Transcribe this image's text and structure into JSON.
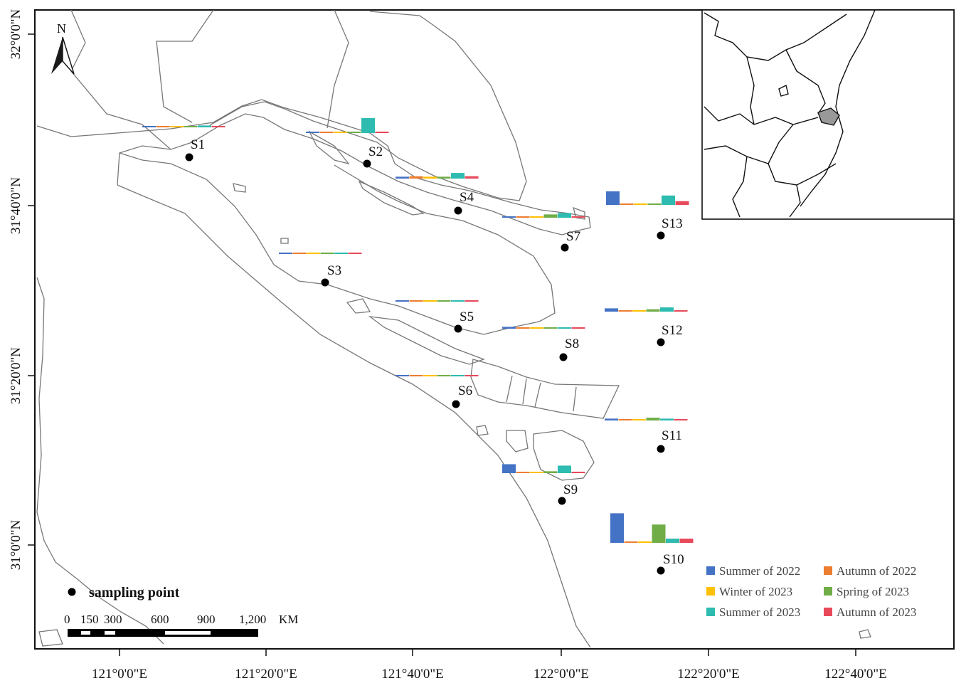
{
  "colors": {
    "summer_2022": "#4472C4",
    "autumn_2022": "#ED7D31",
    "winter_2023": "#FFC000",
    "spring_2023": "#70AD47",
    "summer_2023": "#2EBBB0",
    "autumn_2023": "#E8495A",
    "coast": "#777777",
    "frame": "#111111"
  },
  "north_arrow": {
    "label": "N"
  },
  "axes": {
    "x_ticks": [
      "121°0'0\"E",
      "121°20'0\"E",
      "121°40'0\"E",
      "122°0'0\"E",
      "122°20'0\"E",
      "122°40'0\"E"
    ],
    "y_ticks": [
      "32°0'0\"N",
      "31°40'0\"N",
      "31°20'0\"N",
      "31°0'0\"N"
    ]
  },
  "legend": {
    "sampling_point": "sampling point",
    "series": [
      {
        "key": "summer_2022",
        "label": "Summer of 2022"
      },
      {
        "key": "autumn_2022",
        "label": "Autumn of 2022"
      },
      {
        "key": "winter_2023",
        "label": "Winter of 2023"
      },
      {
        "key": "spring_2023",
        "label": "Spring of 2023"
      },
      {
        "key": "summer_2023",
        "label": "Summer of 2023"
      },
      {
        "key": "autumn_2023",
        "label": "Autumn of 2023"
      }
    ]
  },
  "scale_bar": {
    "labels": [
      "0",
      "150",
      "300",
      "600",
      "900",
      "1,200",
      "KM"
    ]
  },
  "inset": {
    "icon": "china-provinces-inset-map"
  },
  "sites": [
    {
      "name": "S1",
      "values": [
        0.2,
        0.3,
        0.3,
        0.2,
        0.4,
        0.3
      ]
    },
    {
      "name": "S2",
      "values": [
        0.2,
        0.3,
        0.3,
        0.3,
        3.2,
        0.3
      ]
    },
    {
      "name": "S3",
      "values": [
        0.2,
        0.3,
        0.3,
        0.2,
        0.2,
        0.2
      ]
    },
    {
      "name": "S4",
      "values": [
        0.4,
        0.5,
        0.4,
        0.4,
        1.2,
        0.5
      ]
    },
    {
      "name": "S5",
      "values": [
        0.3,
        0.3,
        0.3,
        0.2,
        0.2,
        0.3
      ]
    },
    {
      "name": "S6",
      "values": [
        0.2,
        0.3,
        0.3,
        0.2,
        0.2,
        0.2
      ]
    },
    {
      "name": "S7",
      "values": [
        0.2,
        0.3,
        0.3,
        0.7,
        1.0,
        0.3
      ]
    },
    {
      "name": "S8",
      "values": [
        0.4,
        0.3,
        0.3,
        0.3,
        0.2,
        0.3
      ]
    },
    {
      "name": "S9",
      "values": [
        1.9,
        0.3,
        0.3,
        0.4,
        1.6,
        0.3
      ]
    },
    {
      "name": "S10",
      "values": [
        6.3,
        0.2,
        0.2,
        3.9,
        0.9,
        0.9
      ]
    },
    {
      "name": "S11",
      "values": [
        0.4,
        0.2,
        0.2,
        0.6,
        0.4,
        0.3
      ]
    },
    {
      "name": "S12",
      "values": [
        0.7,
        0.3,
        0.3,
        0.5,
        0.9,
        0.3
      ]
    },
    {
      "name": "S13",
      "values": [
        2.9,
        0.2,
        0.2,
        0.2,
        2.0,
        0.8
      ]
    }
  ]
}
